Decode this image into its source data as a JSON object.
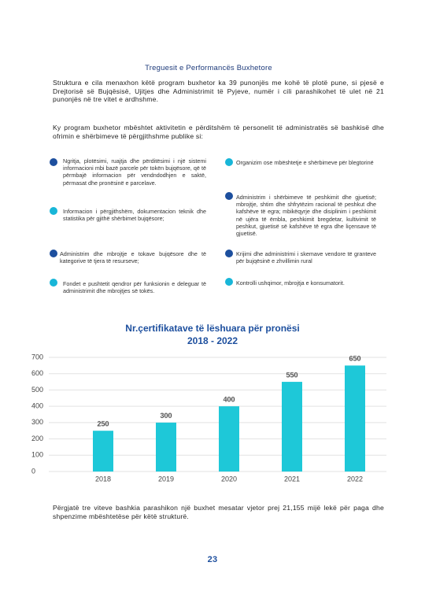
{
  "title": "Treguesit e Performancës Buxhetore",
  "paragraphs": [
    "Struktura e cila menaxhon këtë program buxhetor ka 39 punonjës me kohë të plotë pune, si pjesë e Drejtorisë së Bujqësisë, Ujitjes dhe Administrimit të Pyjeve, numër i cili parashikohet të ulet në 21 punonjës në tre vitet e ardhshme.",
    "Ky program buxhetor mbështet aktivitetin e përditshëm të personelit të administratës së bashkisë dhe ofrimin e shërbimeve të përgjithshme publike si:"
  ],
  "bullets": {
    "left": [
      "Ngritja, plotësimi, ruajtja dhe përditësimi i një sistemi informacioni mbi bazë parcele për tokën bujqësore, që të përmbajë informacion për vendndodhjen e saktë, përmasat dhe pronësinë e parcelave.",
      "Informacion i përgjithshëm, dokumentacion teknik dhe statistika për gjithë shërbimet bujqësore;",
      "Administrim dhe mbrojtje e tokave bujqësore dhe të kategorive të tjera të resurseve;",
      "Fondet e pushtetit qendror për funksionin e deleguar të administrimit dhe mbrojtjes së tokës."
    ],
    "right": [
      "Organizim ose mbështetje e shërbimeve për blegtorinë",
      "Administrim i shërbimeve të peshkimit dhe gjuetisë; mbrojtje, shtim dhe shfrytëzim racional të peshkut dhe kafshëve të egra; mbikëqyrje dhe disiplinim i peshkimit në ujëra të ëmbla, peshkimit bregdetar, kultivimit të peshkut, gjuetisë së kafshëve të egra dhe liçensave të gjuetisë.",
      "Krijimi dhe administrimi i skemave vendore të granteve për bujqësinë e zhvillimin rural",
      "Kontrolli ushqimor, mbrojtja e konsumatorit."
    ]
  },
  "chart_data": {
    "type": "bar",
    "title": "Nr.çertifikatave të lëshuara për pronësi",
    "subtitle": "2018 - 2022",
    "categories": [
      "2018",
      "2019",
      "2020",
      "2021",
      "2022"
    ],
    "values": [
      250,
      300,
      400,
      550,
      650
    ],
    "color": "#1ec8d8",
    "ylim": [
      0,
      700
    ],
    "yticks": [
      0,
      100,
      200,
      300,
      400,
      500,
      600,
      700
    ],
    "grid": true
  },
  "footer": "Përgjatë tre viteve bashkia parashikon një buxhet mesatar vjetor prej 21,155 mijë lekë për paga dhe shpenzime mbështetëse për këtë strukturë.",
  "page_number": 23
}
